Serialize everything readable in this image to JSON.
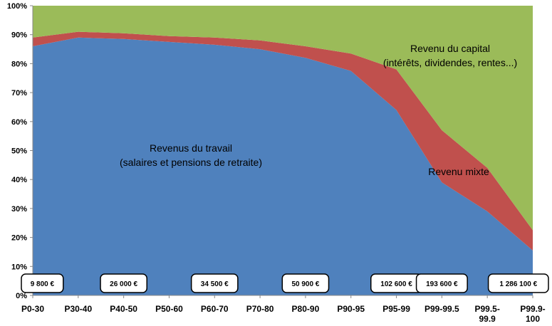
{
  "chart_data": {
    "type": "area",
    "stacked": true,
    "categories": [
      "P0-30",
      "P30-40",
      "P40-50",
      "P50-60",
      "P60-70",
      "P70-80",
      "P80-90",
      "P90-95",
      "P95-99",
      "P99-99.5",
      "P99.5-99.9",
      "P99.9-100"
    ],
    "category_labels": [
      [
        "P0-30"
      ],
      [
        "P30-40"
      ],
      [
        "P40-50"
      ],
      [
        "P50-60"
      ],
      [
        "P60-70"
      ],
      [
        "P70-80"
      ],
      [
        "P80-90"
      ],
      [
        "P90-95"
      ],
      [
        "P95-99"
      ],
      [
        "P99-99.5"
      ],
      [
        "P99.5-",
        "99.9"
      ],
      [
        "P99.9-",
        "100"
      ]
    ],
    "ylim": [
      0,
      100
    ],
    "yticks": [
      "0%",
      "10%",
      "20%",
      "30%",
      "40%",
      "50%",
      "60%",
      "70%",
      "80%",
      "90%",
      "100%"
    ],
    "grid": false,
    "series": [
      {
        "key": "travail",
        "color": "#4f81bd",
        "values": [
          86,
          89,
          88.5,
          87.5,
          86.5,
          85,
          82,
          77.5,
          64,
          39,
          29,
          15.5
        ]
      },
      {
        "key": "mixte",
        "color": "#c0504d",
        "values": [
          3,
          2,
          2,
          2,
          2.5,
          3,
          4,
          6,
          14,
          18,
          15,
          7
        ]
      },
      {
        "key": "capital",
        "color": "#9bbb59",
        "values": [
          11,
          9,
          9.5,
          10.5,
          11,
          12,
          14,
          16.5,
          22,
          43,
          56,
          77.5
        ]
      }
    ],
    "annotations": {
      "travail": [
        "Revenus du travail",
        "(salaires et pensions de retraite)"
      ],
      "capital": [
        "Revenu du capital",
        "(intérêts, dividendes, rentes...)"
      ],
      "mixte": [
        "Revenu mixte"
      ]
    },
    "income_boxes": [
      {
        "category_index": 0,
        "label": "9 800 €"
      },
      {
        "category_index": 2,
        "label": "26 000 €"
      },
      {
        "category_index": 4,
        "label": "34 500 €"
      },
      {
        "category_index": 6,
        "label": "50 900 €"
      },
      {
        "category_index": 8,
        "label": "102 600 €"
      },
      {
        "category_index": 9,
        "label": "193 600 €"
      },
      {
        "category_index": 11,
        "label": "1 286 100 €"
      }
    ]
  }
}
